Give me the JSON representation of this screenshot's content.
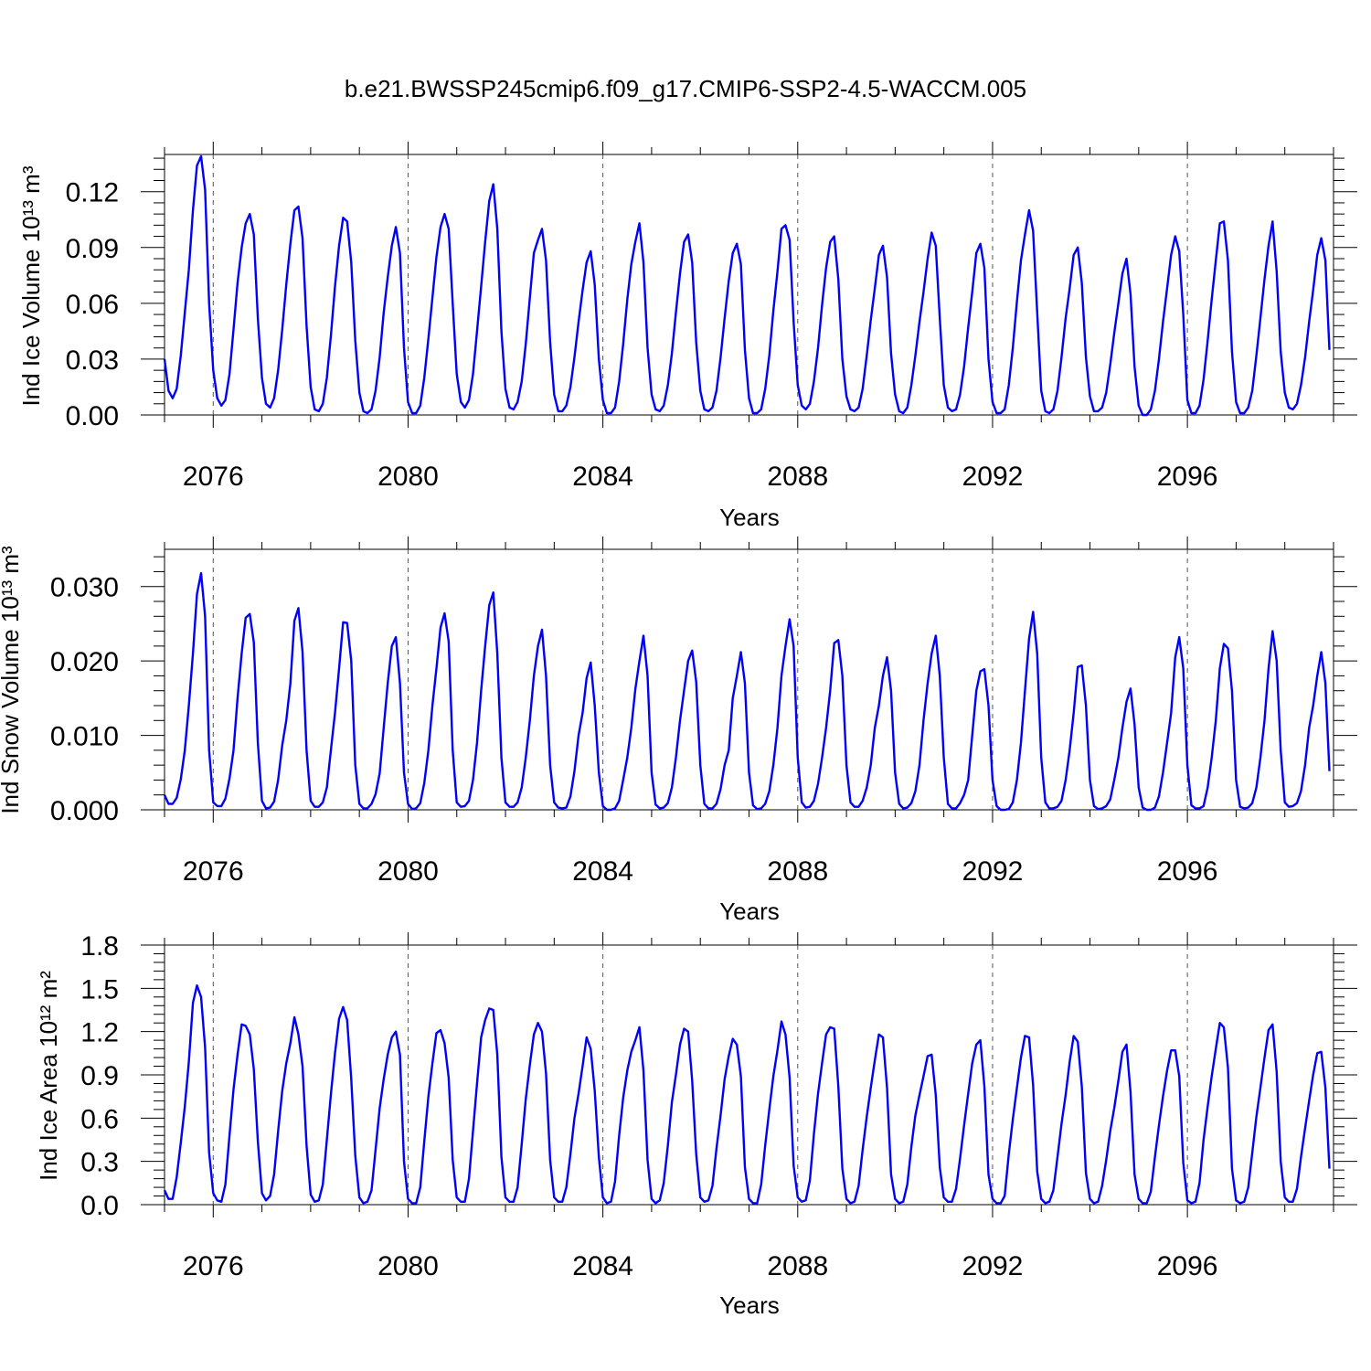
{
  "figure": {
    "title": "b.e21.BWSSP245cmip6.f09_g17.CMIP6-SSP2-4.5-WACCM.005",
    "line_color": "#0000ff"
  },
  "chart_data": [
    {
      "type": "line",
      "title": "",
      "xlabel": "Years",
      "ylabel": "Ind Ice Volume 10¹³ m³",
      "xlim": [
        2075.0,
        2099.0
      ],
      "ylim": [
        0.0,
        0.14
      ],
      "yticks": [
        "0.00",
        "0.03",
        "0.06",
        "0.09",
        "0.12"
      ],
      "xticks": [
        "2076",
        "2080",
        "2084",
        "2088",
        "2092",
        "2096"
      ],
      "x_start": 2075.0,
      "x_step_years": 0.08333,
      "series": [
        {
          "values": [
            0.03,
            0.013,
            0.009,
            0.014,
            0.032,
            0.055,
            0.078,
            0.11,
            0.134,
            0.139,
            0.121,
            0.06,
            0.024,
            0.009,
            0.005,
            0.008,
            0.022,
            0.046,
            0.071,
            0.09,
            0.103,
            0.108,
            0.097,
            0.052,
            0.02,
            0.006,
            0.004,
            0.009,
            0.024,
            0.046,
            0.07,
            0.092,
            0.11,
            0.112,
            0.095,
            0.048,
            0.015,
            0.003,
            0.002,
            0.006,
            0.02,
            0.043,
            0.069,
            0.091,
            0.106,
            0.104,
            0.082,
            0.04,
            0.012,
            0.002,
            0.001,
            0.003,
            0.013,
            0.031,
            0.055,
            0.074,
            0.091,
            0.101,
            0.087,
            0.036,
            0.007,
            0.001,
            0.001,
            0.005,
            0.02,
            0.041,
            0.063,
            0.085,
            0.101,
            0.108,
            0.1,
            0.06,
            0.022,
            0.007,
            0.004,
            0.008,
            0.022,
            0.045,
            0.069,
            0.093,
            0.115,
            0.124,
            0.1,
            0.045,
            0.014,
            0.004,
            0.003,
            0.007,
            0.018,
            0.038,
            0.063,
            0.087,
            0.094,
            0.1,
            0.083,
            0.039,
            0.011,
            0.002,
            0.002,
            0.005,
            0.015,
            0.031,
            0.05,
            0.067,
            0.082,
            0.088,
            0.07,
            0.03,
            0.008,
            0.001,
            0.001,
            0.004,
            0.018,
            0.038,
            0.062,
            0.081,
            0.093,
            0.103,
            0.082,
            0.036,
            0.011,
            0.003,
            0.002,
            0.005,
            0.016,
            0.033,
            0.055,
            0.076,
            0.093,
            0.097,
            0.082,
            0.039,
            0.013,
            0.003,
            0.002,
            0.004,
            0.013,
            0.031,
            0.052,
            0.072,
            0.087,
            0.092,
            0.081,
            0.035,
            0.009,
            0.001,
            0.001,
            0.003,
            0.014,
            0.032,
            0.056,
            0.077,
            0.1,
            0.102,
            0.094,
            0.05,
            0.016,
            0.005,
            0.003,
            0.006,
            0.018,
            0.036,
            0.059,
            0.079,
            0.093,
            0.096,
            0.073,
            0.03,
            0.01,
            0.003,
            0.002,
            0.004,
            0.014,
            0.032,
            0.051,
            0.068,
            0.086,
            0.091,
            0.074,
            0.033,
            0.011,
            0.002,
            0.001,
            0.004,
            0.016,
            0.032,
            0.05,
            0.066,
            0.084,
            0.098,
            0.091,
            0.052,
            0.016,
            0.004,
            0.002,
            0.003,
            0.011,
            0.026,
            0.047,
            0.066,
            0.087,
            0.092,
            0.079,
            0.03,
            0.007,
            0.001,
            0.001,
            0.003,
            0.016,
            0.036,
            0.061,
            0.083,
            0.097,
            0.11,
            0.099,
            0.055,
            0.013,
            0.002,
            0.001,
            0.003,
            0.013,
            0.031,
            0.052,
            0.068,
            0.086,
            0.09,
            0.071,
            0.031,
            0.01,
            0.002,
            0.002,
            0.004,
            0.012,
            0.027,
            0.044,
            0.06,
            0.076,
            0.084,
            0.065,
            0.026,
            0.005,
            0.0,
            0.0,
            0.003,
            0.013,
            0.03,
            0.05,
            0.068,
            0.086,
            0.096,
            0.088,
            0.054,
            0.008,
            0.001,
            0.001,
            0.005,
            0.019,
            0.04,
            0.062,
            0.083,
            0.103,
            0.104,
            0.083,
            0.034,
            0.007,
            0.001,
            0.001,
            0.004,
            0.013,
            0.032,
            0.052,
            0.073,
            0.091,
            0.104,
            0.077,
            0.034,
            0.012,
            0.004,
            0.003,
            0.006,
            0.016,
            0.031,
            0.05,
            0.067,
            0.086,
            0.095,
            0.083,
            0.035
          ]
        }
      ]
    },
    {
      "type": "line",
      "title": "",
      "xlabel": "Years",
      "ylabel": "Ind Snow Volume 10¹³ m³",
      "xlim": [
        2075.0,
        2099.0
      ],
      "ylim": [
        0.0,
        0.035
      ],
      "yticks": [
        "0.000",
        "0.010",
        "0.020",
        "0.030"
      ],
      "xticks": [
        "2076",
        "2080",
        "2084",
        "2088",
        "2092",
        "2096"
      ],
      "x_start": 2075.0,
      "x_step_years": 0.08333,
      "series": [
        {
          "values": [
            0.002,
            0.0008,
            0.0008,
            0.0016,
            0.0041,
            0.008,
            0.014,
            0.021,
            0.029,
            0.0318,
            0.026,
            0.008,
            0.001,
            0.0005,
            0.0005,
            0.0015,
            0.0042,
            0.008,
            0.015,
            0.021,
            0.0258,
            0.0263,
            0.0225,
            0.009,
            0.0012,
            0.0002,
            0.0003,
            0.0011,
            0.004,
            0.0087,
            0.012,
            0.017,
            0.0254,
            0.0271,
            0.0212,
            0.008,
            0.0012,
            0.0004,
            0.0004,
            0.001,
            0.003,
            0.0081,
            0.013,
            0.019,
            0.0252,
            0.0251,
            0.02,
            0.006,
            0.0008,
            0.0002,
            0.0002,
            0.0008,
            0.0021,
            0.0049,
            0.011,
            0.017,
            0.022,
            0.0232,
            0.017,
            0.005,
            0.0008,
            0.0001,
            0.0002,
            0.0009,
            0.0036,
            0.008,
            0.014,
            0.019,
            0.0245,
            0.0264,
            0.0226,
            0.008,
            0.001,
            0.0004,
            0.0005,
            0.0012,
            0.004,
            0.009,
            0.016,
            0.022,
            0.0275,
            0.0292,
            0.021,
            0.007,
            0.001,
            0.0004,
            0.0004,
            0.001,
            0.003,
            0.007,
            0.012,
            0.018,
            0.022,
            0.0242,
            0.018,
            0.006,
            0.001,
            0.0003,
            0.0002,
            0.0003,
            0.0018,
            0.0052,
            0.01,
            0.013,
            0.0177,
            0.0198,
            0.014,
            0.005,
            0.0005,
            0.0,
            0.0,
            0.0002,
            0.0012,
            0.004,
            0.007,
            0.011,
            0.0162,
            0.02,
            0.0234,
            0.018,
            0.005,
            0.0007,
            0.0002,
            0.0003,
            0.0009,
            0.003,
            0.007,
            0.012,
            0.016,
            0.02,
            0.0214,
            0.0172,
            0.006,
            0.0008,
            0.0002,
            0.0002,
            0.0008,
            0.0028,
            0.006,
            0.008,
            0.015,
            0.018,
            0.0212,
            0.017,
            0.005,
            0.0006,
            0.0001,
            0.0002,
            0.0008,
            0.0025,
            0.006,
            0.011,
            0.018,
            0.022,
            0.0256,
            0.022,
            0.007,
            0.001,
            0.0003,
            0.0004,
            0.0012,
            0.0035,
            0.007,
            0.011,
            0.016,
            0.0224,
            0.0228,
            0.018,
            0.006,
            0.001,
            0.0004,
            0.0004,
            0.0012,
            0.003,
            0.006,
            0.011,
            0.014,
            0.018,
            0.0205,
            0.016,
            0.005,
            0.0008,
            0.0002,
            0.0003,
            0.0009,
            0.0025,
            0.006,
            0.012,
            0.017,
            0.021,
            0.0234,
            0.018,
            0.007,
            0.0008,
            0.0002,
            0.0002,
            0.0009,
            0.002,
            0.004,
            0.01,
            0.016,
            0.0186,
            0.0189,
            0.014,
            0.004,
            0.0005,
            0.0,
            0.0,
            0.0001,
            0.001,
            0.004,
            0.009,
            0.016,
            0.023,
            0.0266,
            0.021,
            0.007,
            0.001,
            0.0002,
            0.0002,
            0.0004,
            0.0012,
            0.004,
            0.008,
            0.013,
            0.0192,
            0.0194,
            0.014,
            0.004,
            0.0005,
            0.0001,
            0.0002,
            0.0005,
            0.0014,
            0.004,
            0.007,
            0.011,
            0.0145,
            0.0163,
            0.0115,
            0.003,
            0.0003,
            0.0,
            0.0,
            0.0003,
            0.0018,
            0.005,
            0.009,
            0.013,
            0.0205,
            0.0232,
            0.019,
            0.006,
            0.0006,
            0.0002,
            0.0002,
            0.0005,
            0.003,
            0.007,
            0.012,
            0.019,
            0.0223,
            0.0217,
            0.016,
            0.004,
            0.0004,
            0.0002,
            0.0003,
            0.0009,
            0.003,
            0.007,
            0.012,
            0.019,
            0.024,
            0.02,
            0.008,
            0.001,
            0.0004,
            0.0005,
            0.0009,
            0.0025,
            0.006,
            0.011,
            0.014,
            0.018,
            0.0212,
            0.017,
            0.0052
          ]
        }
      ]
    },
    {
      "type": "line",
      "title": "",
      "xlabel": "Years",
      "ylabel": "Ind Ice Area 10¹² m²",
      "xlim": [
        2075.0,
        2099.0
      ],
      "ylim": [
        0.0,
        1.8
      ],
      "yticks": [
        "0.0",
        "0.3",
        "0.6",
        "0.9",
        "1.2",
        "1.5",
        "1.8"
      ],
      "xticks": [
        "2076",
        "2080",
        "2084",
        "2088",
        "2092",
        "2096"
      ],
      "x_start": 2075.0,
      "x_step_years": 0.08333,
      "series": [
        {
          "values": [
            0.1,
            0.04,
            0.04,
            0.19,
            0.43,
            0.68,
            0.99,
            1.4,
            1.52,
            1.44,
            1.09,
            0.36,
            0.08,
            0.03,
            0.02,
            0.14,
            0.48,
            0.8,
            1.04,
            1.25,
            1.24,
            1.18,
            0.94,
            0.44,
            0.08,
            0.03,
            0.06,
            0.21,
            0.51,
            0.79,
            0.98,
            1.12,
            1.3,
            1.18,
            0.96,
            0.41,
            0.07,
            0.02,
            0.03,
            0.14,
            0.45,
            0.77,
            1.05,
            1.29,
            1.37,
            1.28,
            0.87,
            0.34,
            0.05,
            0.01,
            0.02,
            0.1,
            0.38,
            0.67,
            0.87,
            1.04,
            1.16,
            1.2,
            1.04,
            0.3,
            0.04,
            0.01,
            0.01,
            0.12,
            0.44,
            0.75,
            0.98,
            1.19,
            1.21,
            1.12,
            0.88,
            0.31,
            0.05,
            0.02,
            0.02,
            0.18,
            0.51,
            0.84,
            1.16,
            1.28,
            1.36,
            1.35,
            1.04,
            0.33,
            0.05,
            0.02,
            0.02,
            0.12,
            0.42,
            0.73,
            0.97,
            1.18,
            1.26,
            1.2,
            0.91,
            0.31,
            0.05,
            0.02,
            0.02,
            0.12,
            0.35,
            0.6,
            0.77,
            0.96,
            1.16,
            1.08,
            0.79,
            0.33,
            0.05,
            0.01,
            0.02,
            0.16,
            0.48,
            0.74,
            0.93,
            1.06,
            1.14,
            1.23,
            0.93,
            0.31,
            0.04,
            0.01,
            0.03,
            0.15,
            0.41,
            0.71,
            0.9,
            1.11,
            1.22,
            1.2,
            0.86,
            0.35,
            0.05,
            0.02,
            0.03,
            0.13,
            0.39,
            0.62,
            0.87,
            1.03,
            1.15,
            1.11,
            0.89,
            0.26,
            0.04,
            0.01,
            0.01,
            0.14,
            0.41,
            0.66,
            0.89,
            1.07,
            1.27,
            1.18,
            0.88,
            0.27,
            0.05,
            0.02,
            0.03,
            0.17,
            0.49,
            0.77,
            0.98,
            1.18,
            1.23,
            1.22,
            0.82,
            0.25,
            0.04,
            0.01,
            0.02,
            0.13,
            0.38,
            0.61,
            0.81,
            1.0,
            1.18,
            1.16,
            0.81,
            0.21,
            0.04,
            0.01,
            0.02,
            0.14,
            0.4,
            0.62,
            0.76,
            0.89,
            1.03,
            1.04,
            0.76,
            0.26,
            0.05,
            0.02,
            0.02,
            0.11,
            0.32,
            0.55,
            0.77,
            0.98,
            1.11,
            1.14,
            0.82,
            0.21,
            0.04,
            0.01,
            0.01,
            0.06,
            0.35,
            0.59,
            0.81,
            1.02,
            1.17,
            1.16,
            0.83,
            0.23,
            0.04,
            0.01,
            0.02,
            0.1,
            0.33,
            0.56,
            0.76,
            0.99,
            1.17,
            1.13,
            0.82,
            0.22,
            0.04,
            0.01,
            0.02,
            0.13,
            0.31,
            0.51,
            0.67,
            0.86,
            1.06,
            1.11,
            0.78,
            0.21,
            0.04,
            0.01,
            0.01,
            0.09,
            0.33,
            0.55,
            0.75,
            0.93,
            1.07,
            1.07,
            0.89,
            0.29,
            0.03,
            0.01,
            0.02,
            0.15,
            0.45,
            0.68,
            0.89,
            1.08,
            1.26,
            1.23,
            0.95,
            0.25,
            0.03,
            0.01,
            0.02,
            0.12,
            0.36,
            0.61,
            0.81,
            1.02,
            1.21,
            1.25,
            0.92,
            0.3,
            0.05,
            0.02,
            0.02,
            0.11,
            0.33,
            0.53,
            0.72,
            0.9,
            1.05,
            1.06,
            0.81,
            0.25
          ]
        }
      ]
    }
  ]
}
